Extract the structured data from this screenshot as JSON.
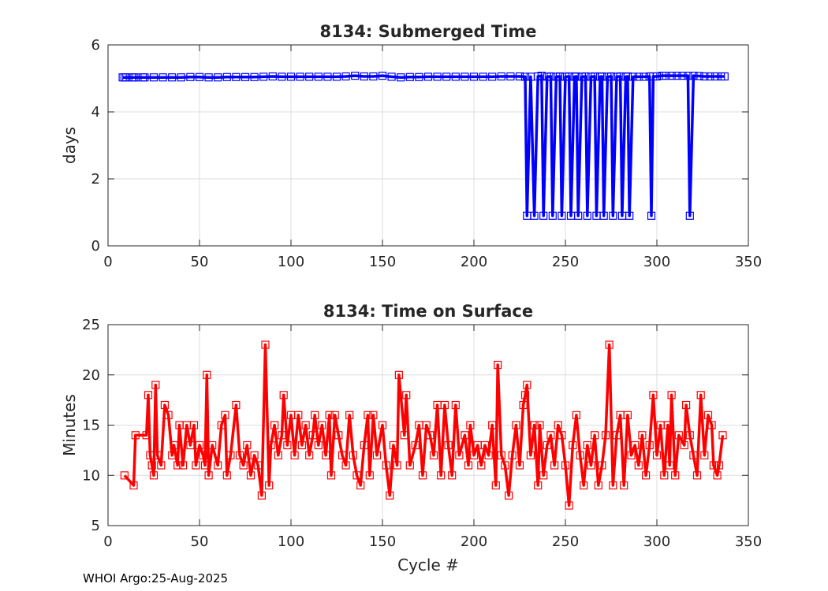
{
  "footer": "WHOI Argo:25-Aug-2025",
  "chart_data": [
    {
      "type": "line",
      "title": "8134: Submerged Time",
      "xlabel": "",
      "ylabel": "days",
      "xlim": [
        0,
        350
      ],
      "ylim": [
        0,
        6
      ],
      "xticks": [
        0,
        50,
        100,
        150,
        200,
        250,
        300,
        350
      ],
      "yticks": [
        0,
        2,
        4,
        6
      ],
      "grid": true,
      "color": "#0000ff",
      "marker": "square",
      "series": [
        {
          "name": "Submerged Time",
          "points": [
            [
              8,
              5.03
            ],
            [
              9,
              5.03
            ],
            [
              10,
              5.03
            ],
            [
              13,
              5.03
            ],
            [
              14,
              5.03
            ],
            [
              15,
              5.03
            ],
            [
              19,
              5.03
            ],
            [
              20,
              5.03
            ],
            [
              25,
              5.03
            ],
            [
              30,
              5.03
            ],
            [
              35,
              5.03
            ],
            [
              40,
              5.03
            ],
            [
              45,
              5.04
            ],
            [
              50,
              5.04
            ],
            [
              55,
              5.03
            ],
            [
              60,
              5.03
            ],
            [
              65,
              5.04
            ],
            [
              70,
              5.04
            ],
            [
              75,
              5.04
            ],
            [
              80,
              5.04
            ],
            [
              85,
              5.05
            ],
            [
              90,
              5.06
            ],
            [
              95,
              5.05
            ],
            [
              100,
              5.05
            ],
            [
              105,
              5.05
            ],
            [
              110,
              5.05
            ],
            [
              115,
              5.05
            ],
            [
              120,
              5.05
            ],
            [
              125,
              5.05
            ],
            [
              130,
              5.06
            ],
            [
              135,
              5.08
            ],
            [
              140,
              5.06
            ],
            [
              145,
              5.06
            ],
            [
              150,
              5.08
            ],
            [
              155,
              5.05
            ],
            [
              160,
              5.03
            ],
            [
              165,
              5.04
            ],
            [
              170,
              5.04
            ],
            [
              175,
              5.05
            ],
            [
              180,
              5.05
            ],
            [
              185,
              5.05
            ],
            [
              190,
              5.05
            ],
            [
              195,
              5.05
            ],
            [
              200,
              5.05
            ],
            [
              205,
              5.05
            ],
            [
              210,
              5.05
            ],
            [
              215,
              5.06
            ],
            [
              220,
              5.06
            ],
            [
              225,
              5.06
            ],
            [
              228,
              5.05
            ],
            [
              229,
              0.9
            ],
            [
              231,
              5.05
            ],
            [
              233,
              0.9
            ],
            [
              235,
              5.06
            ],
            [
              237,
              5.08
            ],
            [
              238,
              0.9
            ],
            [
              240,
              5.05
            ],
            [
              242,
              5.06
            ],
            [
              243,
              0.9
            ],
            [
              245,
              5.05
            ],
            [
              247,
              5.06
            ],
            [
              248,
              0.9
            ],
            [
              250,
              5.05
            ],
            [
              252,
              5.06
            ],
            [
              253,
              0.9
            ],
            [
              255,
              5.05
            ],
            [
              256,
              5.06
            ],
            [
              257,
              0.9
            ],
            [
              259,
              5.05
            ],
            [
              261,
              5.06
            ],
            [
              262,
              0.9
            ],
            [
              264,
              5.05
            ],
            [
              266,
              5.06
            ],
            [
              267,
              0.9
            ],
            [
              269,
              5.05
            ],
            [
              270,
              5.06
            ],
            [
              271,
              0.9
            ],
            [
              273,
              5.05
            ],
            [
              275,
              5.06
            ],
            [
              276,
              0.9
            ],
            [
              278,
              5.05
            ],
            [
              280,
              5.06
            ],
            [
              281,
              0.9
            ],
            [
              283,
              5.05
            ],
            [
              284,
              5.06
            ],
            [
              285,
              0.9
            ],
            [
              287,
              5.05
            ],
            [
              290,
              5.05
            ],
            [
              293,
              5.05
            ],
            [
              296,
              5.06
            ],
            [
              297,
              0.9
            ],
            [
              298,
              5.06
            ],
            [
              300,
              5.06
            ],
            [
              303,
              5.08
            ],
            [
              305,
              5.08
            ],
            [
              308,
              5.08
            ],
            [
              311,
              5.08
            ],
            [
              314,
              5.08
            ],
            [
              317,
              5.08
            ],
            [
              318,
              0.9
            ],
            [
              320,
              5.08
            ],
            [
              323,
              5.07
            ],
            [
              326,
              5.06
            ],
            [
              329,
              5.06
            ],
            [
              332,
              5.06
            ],
            [
              335,
              5.06
            ],
            [
              337,
              5.06
            ]
          ]
        }
      ]
    },
    {
      "type": "line",
      "title": "8134: Time on Surface",
      "xlabel": "Cycle #",
      "ylabel": "Minutes",
      "xlim": [
        0,
        350
      ],
      "ylim": [
        5,
        25
      ],
      "xticks": [
        0,
        50,
        100,
        150,
        200,
        250,
        300,
        350
      ],
      "yticks": [
        5,
        10,
        15,
        20,
        25
      ],
      "grid": true,
      "color": "#ff0000",
      "marker": "square",
      "series": [
        {
          "name": "Time on Surface",
          "points": [
            [
              9,
              10
            ],
            [
              14,
              9
            ],
            [
              15,
              14
            ],
            [
              21,
              14
            ],
            [
              22,
              18
            ],
            [
              23,
              12
            ],
            [
              24,
              11
            ],
            [
              25,
              10
            ],
            [
              26,
              19
            ],
            [
              27,
              12
            ],
            [
              29,
              11
            ],
            [
              31,
              17
            ],
            [
              33,
              16
            ],
            [
              35,
              12
            ],
            [
              36,
              13
            ],
            [
              38,
              11
            ],
            [
              39,
              15
            ],
            [
              41,
              11
            ],
            [
              43,
              15
            ],
            [
              45,
              13
            ],
            [
              47,
              15
            ],
            [
              48,
              11
            ],
            [
              50,
              13
            ],
            [
              52,
              12
            ],
            [
              53,
              11
            ],
            [
              54,
              20
            ],
            [
              55,
              10
            ],
            [
              57,
              13
            ],
            [
              60,
              11
            ],
            [
              62,
              15
            ],
            [
              64,
              16
            ],
            [
              65,
              10
            ],
            [
              67,
              12
            ],
            [
              70,
              17
            ],
            [
              72,
              12
            ],
            [
              74,
              11
            ],
            [
              76,
              13
            ],
            [
              78,
              10
            ],
            [
              80,
              12
            ],
            [
              82,
              11
            ],
            [
              84,
              8
            ],
            [
              86,
              23
            ],
            [
              88,
              9
            ],
            [
              89,
              13
            ],
            [
              91,
              15
            ],
            [
              93,
              12
            ],
            [
              95,
              14
            ],
            [
              96,
              18
            ],
            [
              98,
              13
            ],
            [
              100,
              16
            ],
            [
              102,
              12
            ],
            [
              104,
              16
            ],
            [
              106,
              13
            ],
            [
              108,
              15
            ],
            [
              110,
              12
            ],
            [
              112,
              14
            ],
            [
              113,
              16
            ],
            [
              115,
              13
            ],
            [
              117,
              15
            ],
            [
              119,
              12
            ],
            [
              121,
              16
            ],
            [
              122,
              10
            ],
            [
              124,
              16
            ],
            [
              126,
              14
            ],
            [
              128,
              12
            ],
            [
              130,
              11
            ],
            [
              132,
              16
            ],
            [
              134,
              12
            ],
            [
              136,
              10
            ],
            [
              138,
              9
            ],
            [
              140,
              13
            ],
            [
              142,
              16
            ],
            [
              143,
              10
            ],
            [
              145,
              16
            ],
            [
              147,
              12
            ],
            [
              150,
              15
            ],
            [
              152,
              11
            ],
            [
              154,
              8
            ],
            [
              156,
              13
            ],
            [
              158,
              11
            ],
            [
              159,
              20
            ],
            [
              162,
              14
            ],
            [
              163,
              18
            ],
            [
              165,
              11
            ],
            [
              168,
              13
            ],
            [
              170,
              15
            ],
            [
              172,
              10
            ],
            [
              174,
              15
            ],
            [
              176,
              14
            ],
            [
              178,
              12
            ],
            [
              180,
              17
            ],
            [
              182,
              10
            ],
            [
              184,
              17
            ],
            [
              186,
              13
            ],
            [
              188,
              10
            ],
            [
              190,
              17
            ],
            [
              192,
              12
            ],
            [
              195,
              14
            ],
            [
              197,
              11
            ],
            [
              198,
              15
            ],
            [
              200,
              12
            ],
            [
              202,
              13
            ],
            [
              204,
              11
            ],
            [
              206,
              13
            ],
            [
              208,
              12
            ],
            [
              210,
              15
            ],
            [
              212,
              9
            ],
            [
              213,
              21
            ],
            [
              215,
              12
            ],
            [
              217,
              11
            ],
            [
              219,
              8
            ],
            [
              221,
              12
            ],
            [
              223,
              15
            ],
            [
              225,
              11
            ],
            [
              227,
              17
            ],
            [
              228,
              18
            ],
            [
              229,
              19
            ],
            [
              231,
              12
            ],
            [
              233,
              15
            ],
            [
              235,
              9
            ],
            [
              236,
              15
            ],
            [
              238,
              10
            ],
            [
              240,
              13
            ],
            [
              242,
              14
            ],
            [
              244,
              11
            ],
            [
              246,
              15
            ],
            [
              248,
              14
            ],
            [
              250,
              11
            ],
            [
              252,
              7
            ],
            [
              254,
              13
            ],
            [
              256,
              16
            ],
            [
              258,
              12
            ],
            [
              260,
              9
            ],
            [
              262,
              13
            ],
            [
              264,
              11
            ],
            [
              266,
              14
            ],
            [
              268,
              9
            ],
            [
              270,
              11
            ],
            [
              272,
              14
            ],
            [
              274,
              23
            ],
            [
              276,
              9
            ],
            [
              278,
              14
            ],
            [
              280,
              16
            ],
            [
              282,
              9
            ],
            [
              284,
              16
            ],
            [
              286,
              12
            ],
            [
              288,
              13
            ],
            [
              290,
              11
            ],
            [
              292,
              14
            ],
            [
              294,
              10
            ],
            [
              296,
              13
            ],
            [
              298,
              18
            ],
            [
              300,
              12
            ],
            [
              302,
              15
            ],
            [
              304,
              10
            ],
            [
              306,
              15
            ],
            [
              307,
              11
            ],
            [
              308,
              18
            ],
            [
              310,
              10
            ],
            [
              312,
              14
            ],
            [
              315,
              13
            ],
            [
              316,
              17
            ],
            [
              318,
              14
            ],
            [
              320,
              12
            ],
            [
              322,
              10
            ],
            [
              324,
              18
            ],
            [
              326,
              12
            ],
            [
              328,
              16
            ],
            [
              330,
              15
            ],
            [
              331,
              11
            ],
            [
              333,
              10
            ],
            [
              334,
              11
            ],
            [
              336,
              14
            ]
          ]
        }
      ]
    }
  ]
}
